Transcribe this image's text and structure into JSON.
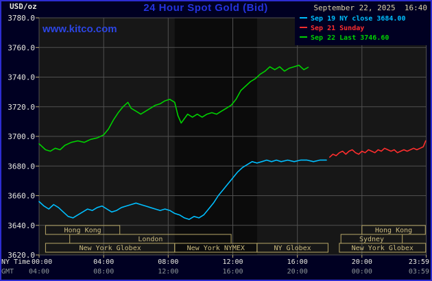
{
  "header": {
    "title": "24 Hour Spot Gold (Bid)",
    "date": "September 22, 2025  16:40",
    "watermark": "www.kitco.com",
    "unit": "USD/oz"
  },
  "axes": {
    "ny_time_label": "NY Time",
    "gmt_label": "GMT"
  },
  "colors": {
    "page_bg": "#000022",
    "border": "#2d2dd0",
    "plot_bg": "#171717",
    "plot_shade": "#0b0b0b",
    "grid": "#505050",
    "axis_text": "#e9e9e0",
    "gmt_text": "#8f9898",
    "tick": "#c0b070",
    "session_box": "#b8a868",
    "session_text": "#ccbc80",
    "title": "#2533dd",
    "watermark": "#2c45e2",
    "date_text": "#dcd2a8"
  },
  "chart_data": {
    "type": "line",
    "title": "24 Hour Spot Gold (Bid)",
    "ylabel": "USD/oz",
    "ylim": [
      3620,
      3780
    ],
    "ytick_step": 20,
    "xlim_hours": [
      0,
      24
    ],
    "grid": true,
    "legend_position": "top-right",
    "x_ticks": [
      {
        "hour": 0,
        "ny": "00:00",
        "gmt": "04:00"
      },
      {
        "hour": 4,
        "ny": "04:00",
        "gmt": "08:00"
      },
      {
        "hour": 8,
        "ny": "08:00",
        "gmt": "12:00"
      },
      {
        "hour": 12,
        "ny": "12:00",
        "gmt": "16:00"
      },
      {
        "hour": 16,
        "ny": "16:00",
        "gmt": "20:00"
      },
      {
        "hour": 20,
        "ny": "20:00",
        "gmt": "00:00"
      },
      {
        "hour": 23.983,
        "ny": "23:59",
        "gmt": "03:59"
      }
    ],
    "shaded_region_hours": [
      8.4,
      13.5
    ],
    "series": [
      {
        "name": "Sep 19 NY close 3684.00",
        "color": "#00bfff",
        "points": [
          [
            0,
            3656
          ],
          [
            0.3,
            3653
          ],
          [
            0.6,
            3651
          ],
          [
            0.9,
            3654
          ],
          [
            1.2,
            3652
          ],
          [
            1.5,
            3649
          ],
          [
            1.8,
            3646
          ],
          [
            2.1,
            3645
          ],
          [
            2.4,
            3647
          ],
          [
            2.7,
            3649
          ],
          [
            3,
            3651
          ],
          [
            3.3,
            3650
          ],
          [
            3.6,
            3652
          ],
          [
            3.9,
            3653
          ],
          [
            4.2,
            3651
          ],
          [
            4.5,
            3649
          ],
          [
            4.8,
            3650
          ],
          [
            5.1,
            3652
          ],
          [
            5.4,
            3653
          ],
          [
            5.7,
            3654
          ],
          [
            6,
            3655
          ],
          [
            6.3,
            3654
          ],
          [
            6.6,
            3653
          ],
          [
            6.9,
            3652
          ],
          [
            7.2,
            3651
          ],
          [
            7.5,
            3650
          ],
          [
            7.8,
            3651
          ],
          [
            8.1,
            3650
          ],
          [
            8.4,
            3648
          ],
          [
            8.7,
            3647
          ],
          [
            9,
            3645
          ],
          [
            9.3,
            3644
          ],
          [
            9.6,
            3646
          ],
          [
            9.9,
            3645
          ],
          [
            10.2,
            3647
          ],
          [
            10.5,
            3651
          ],
          [
            10.8,
            3655
          ],
          [
            11.1,
            3660
          ],
          [
            11.4,
            3664
          ],
          [
            11.7,
            3668
          ],
          [
            12,
            3672
          ],
          [
            12.3,
            3676
          ],
          [
            12.6,
            3679
          ],
          [
            12.9,
            3681
          ],
          [
            13.2,
            3683
          ],
          [
            13.5,
            3682
          ],
          [
            13.8,
            3683
          ],
          [
            14.1,
            3684
          ],
          [
            14.4,
            3683
          ],
          [
            14.7,
            3684
          ],
          [
            15,
            3683
          ],
          [
            15.4,
            3684
          ],
          [
            15.8,
            3683
          ],
          [
            16.2,
            3684
          ],
          [
            16.6,
            3684
          ],
          [
            17,
            3683
          ],
          [
            17.4,
            3684
          ],
          [
            17.8,
            3684
          ]
        ]
      },
      {
        "name": "Sep 21 Sunday",
        "color": "#ff2e2e",
        "points": [
          [
            18,
            3686
          ],
          [
            18.2,
            3688
          ],
          [
            18.4,
            3687
          ],
          [
            18.6,
            3689
          ],
          [
            18.8,
            3690
          ],
          [
            19,
            3688
          ],
          [
            19.2,
            3690
          ],
          [
            19.4,
            3691
          ],
          [
            19.6,
            3689
          ],
          [
            19.8,
            3688
          ],
          [
            20,
            3690
          ],
          [
            20.2,
            3689
          ],
          [
            20.4,
            3691
          ],
          [
            20.6,
            3690
          ],
          [
            20.8,
            3689
          ],
          [
            21,
            3691
          ],
          [
            21.2,
            3690
          ],
          [
            21.4,
            3692
          ],
          [
            21.6,
            3691
          ],
          [
            21.8,
            3690
          ],
          [
            22,
            3691
          ],
          [
            22.2,
            3689
          ],
          [
            22.4,
            3690
          ],
          [
            22.6,
            3691
          ],
          [
            22.8,
            3690
          ],
          [
            23,
            3691
          ],
          [
            23.2,
            3692
          ],
          [
            23.4,
            3691
          ],
          [
            23.6,
            3692
          ],
          [
            23.8,
            3693
          ],
          [
            23.95,
            3697
          ]
        ]
      },
      {
        "name": "Sep 22 Last 3746.60",
        "color": "#00d200",
        "points": [
          [
            0,
            3695
          ],
          [
            0.2,
            3693
          ],
          [
            0.4,
            3691
          ],
          [
            0.7,
            3690
          ],
          [
            1,
            3692
          ],
          [
            1.3,
            3691
          ],
          [
            1.6,
            3694
          ],
          [
            2,
            3696
          ],
          [
            2.4,
            3697
          ],
          [
            2.8,
            3696
          ],
          [
            3.2,
            3698
          ],
          [
            3.6,
            3699
          ],
          [
            4,
            3701
          ],
          [
            4.3,
            3705
          ],
          [
            4.6,
            3711
          ],
          [
            4.9,
            3716
          ],
          [
            5.2,
            3720
          ],
          [
            5.5,
            3723
          ],
          [
            5.7,
            3719
          ],
          [
            6,
            3717
          ],
          [
            6.3,
            3715
          ],
          [
            6.6,
            3717
          ],
          [
            6.9,
            3719
          ],
          [
            7.2,
            3721
          ],
          [
            7.5,
            3722
          ],
          [
            7.8,
            3724
          ],
          [
            8.1,
            3725
          ],
          [
            8.4,
            3723
          ],
          [
            8.6,
            3714
          ],
          [
            8.8,
            3709
          ],
          [
            9,
            3712
          ],
          [
            9.2,
            3715
          ],
          [
            9.5,
            3713
          ],
          [
            9.8,
            3715
          ],
          [
            10.1,
            3713
          ],
          [
            10.4,
            3715
          ],
          [
            10.7,
            3716
          ],
          [
            11,
            3715
          ],
          [
            11.3,
            3717
          ],
          [
            11.6,
            3719
          ],
          [
            11.9,
            3721
          ],
          [
            12.2,
            3725
          ],
          [
            12.5,
            3731
          ],
          [
            12.8,
            3734
          ],
          [
            13.1,
            3737
          ],
          [
            13.4,
            3739
          ],
          [
            13.7,
            3742
          ],
          [
            14,
            3744
          ],
          [
            14.3,
            3747
          ],
          [
            14.6,
            3745
          ],
          [
            14.9,
            3747
          ],
          [
            15.2,
            3744
          ],
          [
            15.5,
            3746
          ],
          [
            15.8,
            3747
          ],
          [
            16.1,
            3748
          ],
          [
            16.4,
            3745
          ],
          [
            16.67,
            3746.6
          ]
        ]
      }
    ],
    "sessions": [
      {
        "label": "Hong Kong",
        "row": 0,
        "start": 0.4,
        "end": 5.0
      },
      {
        "label": "Hong Kong",
        "row": 0,
        "start": 20.0,
        "end": 23.93
      },
      {
        "label": "London",
        "row": 1,
        "start": 1.9,
        "end": 11.9
      },
      {
        "label": "Sydney",
        "row": 1,
        "start": 18.7,
        "end": 22.5
      },
      {
        "label": "New York Globex",
        "row": 2,
        "start": 0.4,
        "end": 8.4
      },
      {
        "label": "New York NYMEX",
        "row": 2,
        "start": 8.4,
        "end": 13.5
      },
      {
        "label": "NY Globex",
        "row": 2,
        "start": 13.5,
        "end": 17.9
      },
      {
        "label": "New York Globex",
        "row": 2,
        "start": 18.6,
        "end": 23.95
      }
    ]
  }
}
